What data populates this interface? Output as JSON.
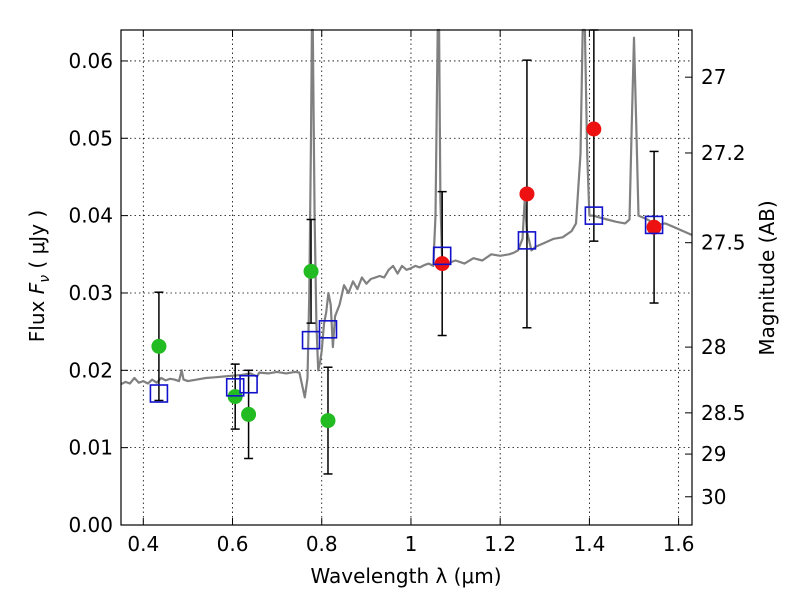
{
  "chart_data": {
    "type": "scatter",
    "xlabel": "Wavelength  λ (μm)",
    "ylabel": "Flux  F_ν  ( μJy )",
    "ylabel_parts": {
      "prefix": "Flux  ",
      "symbol": "F",
      "subscript": "ν",
      "suffix": "  (  μJy )"
    },
    "ylabel_right": "Magnitude (AB)",
    "xlim": [
      0.35,
      1.63
    ],
    "ylim": [
      0.0,
      0.064
    ],
    "grid": true,
    "x_ticks": [
      0.4,
      0.6,
      0.8,
      1.0,
      1.2,
      1.4,
      1.6
    ],
    "x_tick_labels": [
      "0.4",
      "0.6",
      "0.8",
      "1",
      "1.2",
      "1.4",
      "1.6"
    ],
    "y_ticks": [
      0.0,
      0.01,
      0.02,
      0.03,
      0.04,
      0.05,
      0.06
    ],
    "y_tick_labels": [
      "0.00",
      "0.01",
      "0.02",
      "0.03",
      "0.04",
      "0.05",
      "0.06"
    ],
    "right_ticks": [
      {
        "label": "27",
        "flux": 0.0579
      },
      {
        "label": "27.2",
        "flux": 0.0481
      },
      {
        "label": "27.5",
        "flux": 0.0365
      },
      {
        "label": "28",
        "flux": 0.023
      },
      {
        "label": "28.5",
        "flux": 0.0145
      },
      {
        "label": "29",
        "flux": 0.00917
      },
      {
        "label": "30",
        "flux": 0.00365
      }
    ],
    "colors": {
      "green": "#22bb22",
      "red": "#ee1111",
      "blue": "#1111cc",
      "spectrum": "#808080",
      "errorbar": "#000000",
      "grid": "#000000"
    },
    "series": [
      {
        "name": "",
        "marker": "circle",
        "color": "green",
        "points": [
          {
            "x": 0.435,
            "y": 0.0231,
            "err": 0.007
          },
          {
            "x": 0.606,
            "y": 0.0166,
            "err": 0.0042
          },
          {
            "x": 0.636,
            "y": 0.0143,
            "err": 0.0057
          },
          {
            "x": 0.776,
            "y": 0.0328,
            "err": 0.0067
          },
          {
            "x": 0.814,
            "y": 0.0135,
            "err": 0.0069
          }
        ]
      },
      {
        "name": "",
        "marker": "circle",
        "color": "red",
        "points": [
          {
            "x": 1.07,
            "y": 0.0338,
            "err": 0.0093
          },
          {
            "x": 1.26,
            "y": 0.0428,
            "err": 0.0173
          },
          {
            "x": 1.41,
            "y": 0.0512,
            "err": 0.0145
          },
          {
            "x": 1.545,
            "y": 0.0385,
            "err": 0.0098
          }
        ]
      },
      {
        "name": "",
        "marker": "open-square",
        "color": "blue",
        "points": [
          {
            "x": 0.435,
            "y": 0.017
          },
          {
            "x": 0.606,
            "y": 0.0178
          },
          {
            "x": 0.636,
            "y": 0.0182
          },
          {
            "x": 0.776,
            "y": 0.0239
          },
          {
            "x": 0.814,
            "y": 0.0253
          },
          {
            "x": 1.07,
            "y": 0.0348
          },
          {
            "x": 1.26,
            "y": 0.0368
          },
          {
            "x": 1.41,
            "y": 0.04
          },
          {
            "x": 1.545,
            "y": 0.0388
          }
        ]
      },
      {
        "name": "",
        "marker": "line",
        "color": "spectrum",
        "points": [
          [
            0.35,
            0.0182
          ],
          [
            0.36,
            0.0185
          ],
          [
            0.37,
            0.0183
          ],
          [
            0.38,
            0.019
          ],
          [
            0.39,
            0.0184
          ],
          [
            0.4,
            0.0186
          ],
          [
            0.41,
            0.0183
          ],
          [
            0.42,
            0.0188
          ],
          [
            0.43,
            0.0184
          ],
          [
            0.44,
            0.019
          ],
          [
            0.45,
            0.0187
          ],
          [
            0.46,
            0.0189
          ],
          [
            0.47,
            0.0188
          ],
          [
            0.48,
            0.0186
          ],
          [
            0.486,
            0.02
          ],
          [
            0.49,
            0.0188
          ],
          [
            0.5,
            0.0186
          ],
          [
            0.52,
            0.0188
          ],
          [
            0.54,
            0.019
          ],
          [
            0.56,
            0.0191
          ],
          [
            0.58,
            0.0192
          ],
          [
            0.6,
            0.0193
          ],
          [
            0.62,
            0.0194
          ],
          [
            0.64,
            0.0196
          ],
          [
            0.655,
            0.0192
          ],
          [
            0.66,
            0.0197
          ],
          [
            0.68,
            0.0196
          ],
          [
            0.7,
            0.0198
          ],
          [
            0.72,
            0.0196
          ],
          [
            0.74,
            0.0198
          ],
          [
            0.75,
            0.0197
          ],
          [
            0.762,
            0.0165
          ],
          [
            0.768,
            0.019
          ],
          [
            0.772,
            0.03
          ],
          [
            0.776,
            0.05
          ],
          [
            0.778,
            0.064
          ],
          [
            0.78,
            0.064
          ],
          [
            0.784,
            0.04
          ],
          [
            0.788,
            0.026
          ],
          [
            0.792,
            0.02
          ],
          [
            0.796,
            0.021
          ],
          [
            0.8,
            0.0225
          ],
          [
            0.805,
            0.026
          ],
          [
            0.81,
            0.0275
          ],
          [
            0.815,
            0.03
          ],
          [
            0.82,
            0.0285
          ],
          [
            0.825,
            0.023
          ],
          [
            0.83,
            0.027
          ],
          [
            0.84,
            0.0285
          ],
          [
            0.85,
            0.031
          ],
          [
            0.86,
            0.03
          ],
          [
            0.87,
            0.0315
          ],
          [
            0.88,
            0.0305
          ],
          [
            0.89,
            0.032
          ],
          [
            0.9,
            0.0312
          ],
          [
            0.91,
            0.0318
          ],
          [
            0.92,
            0.032
          ],
          [
            0.93,
            0.0322
          ],
          [
            0.94,
            0.032
          ],
          [
            0.95,
            0.033
          ],
          [
            0.96,
            0.0335
          ],
          [
            0.97,
            0.0325
          ],
          [
            0.98,
            0.0335
          ],
          [
            0.99,
            0.033
          ],
          [
            1.0,
            0.0332
          ],
          [
            1.01,
            0.0335
          ],
          [
            1.02,
            0.0333
          ],
          [
            1.03,
            0.0336
          ],
          [
            1.04,
            0.0338
          ],
          [
            1.05,
            0.0335
          ],
          [
            1.055,
            0.04
          ],
          [
            1.06,
            0.064
          ],
          [
            1.063,
            0.064
          ],
          [
            1.066,
            0.042
          ],
          [
            1.07,
            0.034
          ],
          [
            1.08,
            0.0338
          ],
          [
            1.09,
            0.034
          ],
          [
            1.1,
            0.0342
          ],
          [
            1.12,
            0.0338
          ],
          [
            1.14,
            0.0345
          ],
          [
            1.16,
            0.0342
          ],
          [
            1.18,
            0.035
          ],
          [
            1.2,
            0.0348
          ],
          [
            1.22,
            0.035
          ],
          [
            1.23,
            0.0352
          ],
          [
            1.24,
            0.0355
          ],
          [
            1.25,
            0.037
          ],
          [
            1.255,
            0.042
          ],
          [
            1.26,
            0.038
          ],
          [
            1.27,
            0.0355
          ],
          [
            1.28,
            0.036
          ],
          [
            1.3,
            0.0365
          ],
          [
            1.32,
            0.037
          ],
          [
            1.34,
            0.0372
          ],
          [
            1.36,
            0.038
          ],
          [
            1.37,
            0.039
          ],
          [
            1.38,
            0.048
          ],
          [
            1.385,
            0.064
          ],
          [
            1.39,
            0.064
          ],
          [
            1.395,
            0.048
          ],
          [
            1.4,
            0.04
          ],
          [
            1.41,
            0.04
          ],
          [
            1.42,
            0.0398
          ],
          [
            1.44,
            0.0395
          ],
          [
            1.46,
            0.0392
          ],
          [
            1.48,
            0.039
          ],
          [
            1.49,
            0.0395
          ],
          [
            1.495,
            0.052
          ],
          [
            1.5,
            0.063
          ],
          [
            1.505,
            0.052
          ],
          [
            1.51,
            0.04
          ],
          [
            1.53,
            0.0395
          ],
          [
            1.55,
            0.0388
          ],
          [
            1.57,
            0.039
          ],
          [
            1.59,
            0.0385
          ],
          [
            1.61,
            0.038
          ],
          [
            1.63,
            0.0375
          ]
        ]
      }
    ]
  }
}
